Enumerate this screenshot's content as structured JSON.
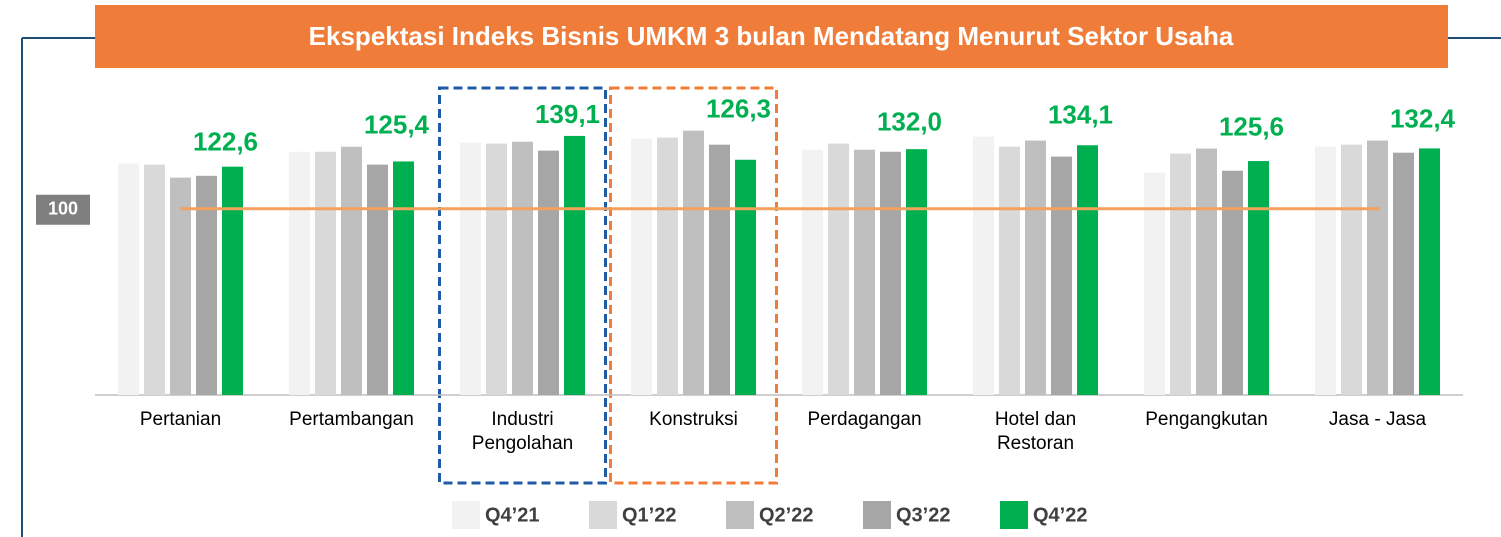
{
  "chart_data": {
    "type": "bar",
    "title": "Ekspektasi Indeks Bisnis UMKM 3 bulan Mendatang Menurut Sektor Usaha",
    "categories": [
      "Pertanian",
      "Pertambangan",
      "Industri\nPengolahan",
      "Konstruksi",
      "Perdagangan",
      "Hotel dan\nRestoran",
      "Pengangkutan",
      "Jasa - Jasa"
    ],
    "series": [
      {
        "name": "Q4’21",
        "color": "#f2f2f2",
        "values": [
          124.2,
          130.6,
          135.5,
          137.6,
          131.7,
          138.7,
          119.4,
          133.3
        ]
      },
      {
        "name": "Q1’22",
        "color": "#d9d9d9",
        "values": [
          123.7,
          130.6,
          135.0,
          138.2,
          135.0,
          133.3,
          129.6,
          134.4
        ]
      },
      {
        "name": "Q2’22",
        "color": "#bfbfbf",
        "values": [
          116.7,
          133.3,
          136.0,
          141.9,
          131.7,
          136.6,
          132.3,
          136.6
        ]
      },
      {
        "name": "Q3’22",
        "color": "#a6a6a6",
        "values": [
          117.7,
          123.7,
          131.2,
          134.4,
          130.6,
          128.0,
          120.4,
          130.1
        ]
      },
      {
        "name": "Q4’22",
        "color": "#00b050",
        "values": [
          122.6,
          125.4,
          139.1,
          126.3,
          132.0,
          134.1,
          125.6,
          132.4
        ],
        "value_labels": [
          "122,6",
          "125,4",
          "139,1",
          "126,3",
          "132,0",
          "134,1",
          "125,6",
          "132,4"
        ]
      }
    ],
    "ylim": [
      0,
      160
    ],
    "reference_line": {
      "value": 100,
      "label": "100",
      "color": "#f4a15c"
    },
    "highlights": [
      {
        "index": 2,
        "color": "#1f5aa6"
      },
      {
        "index": 3,
        "color": "#f07c3a"
      }
    ]
  }
}
